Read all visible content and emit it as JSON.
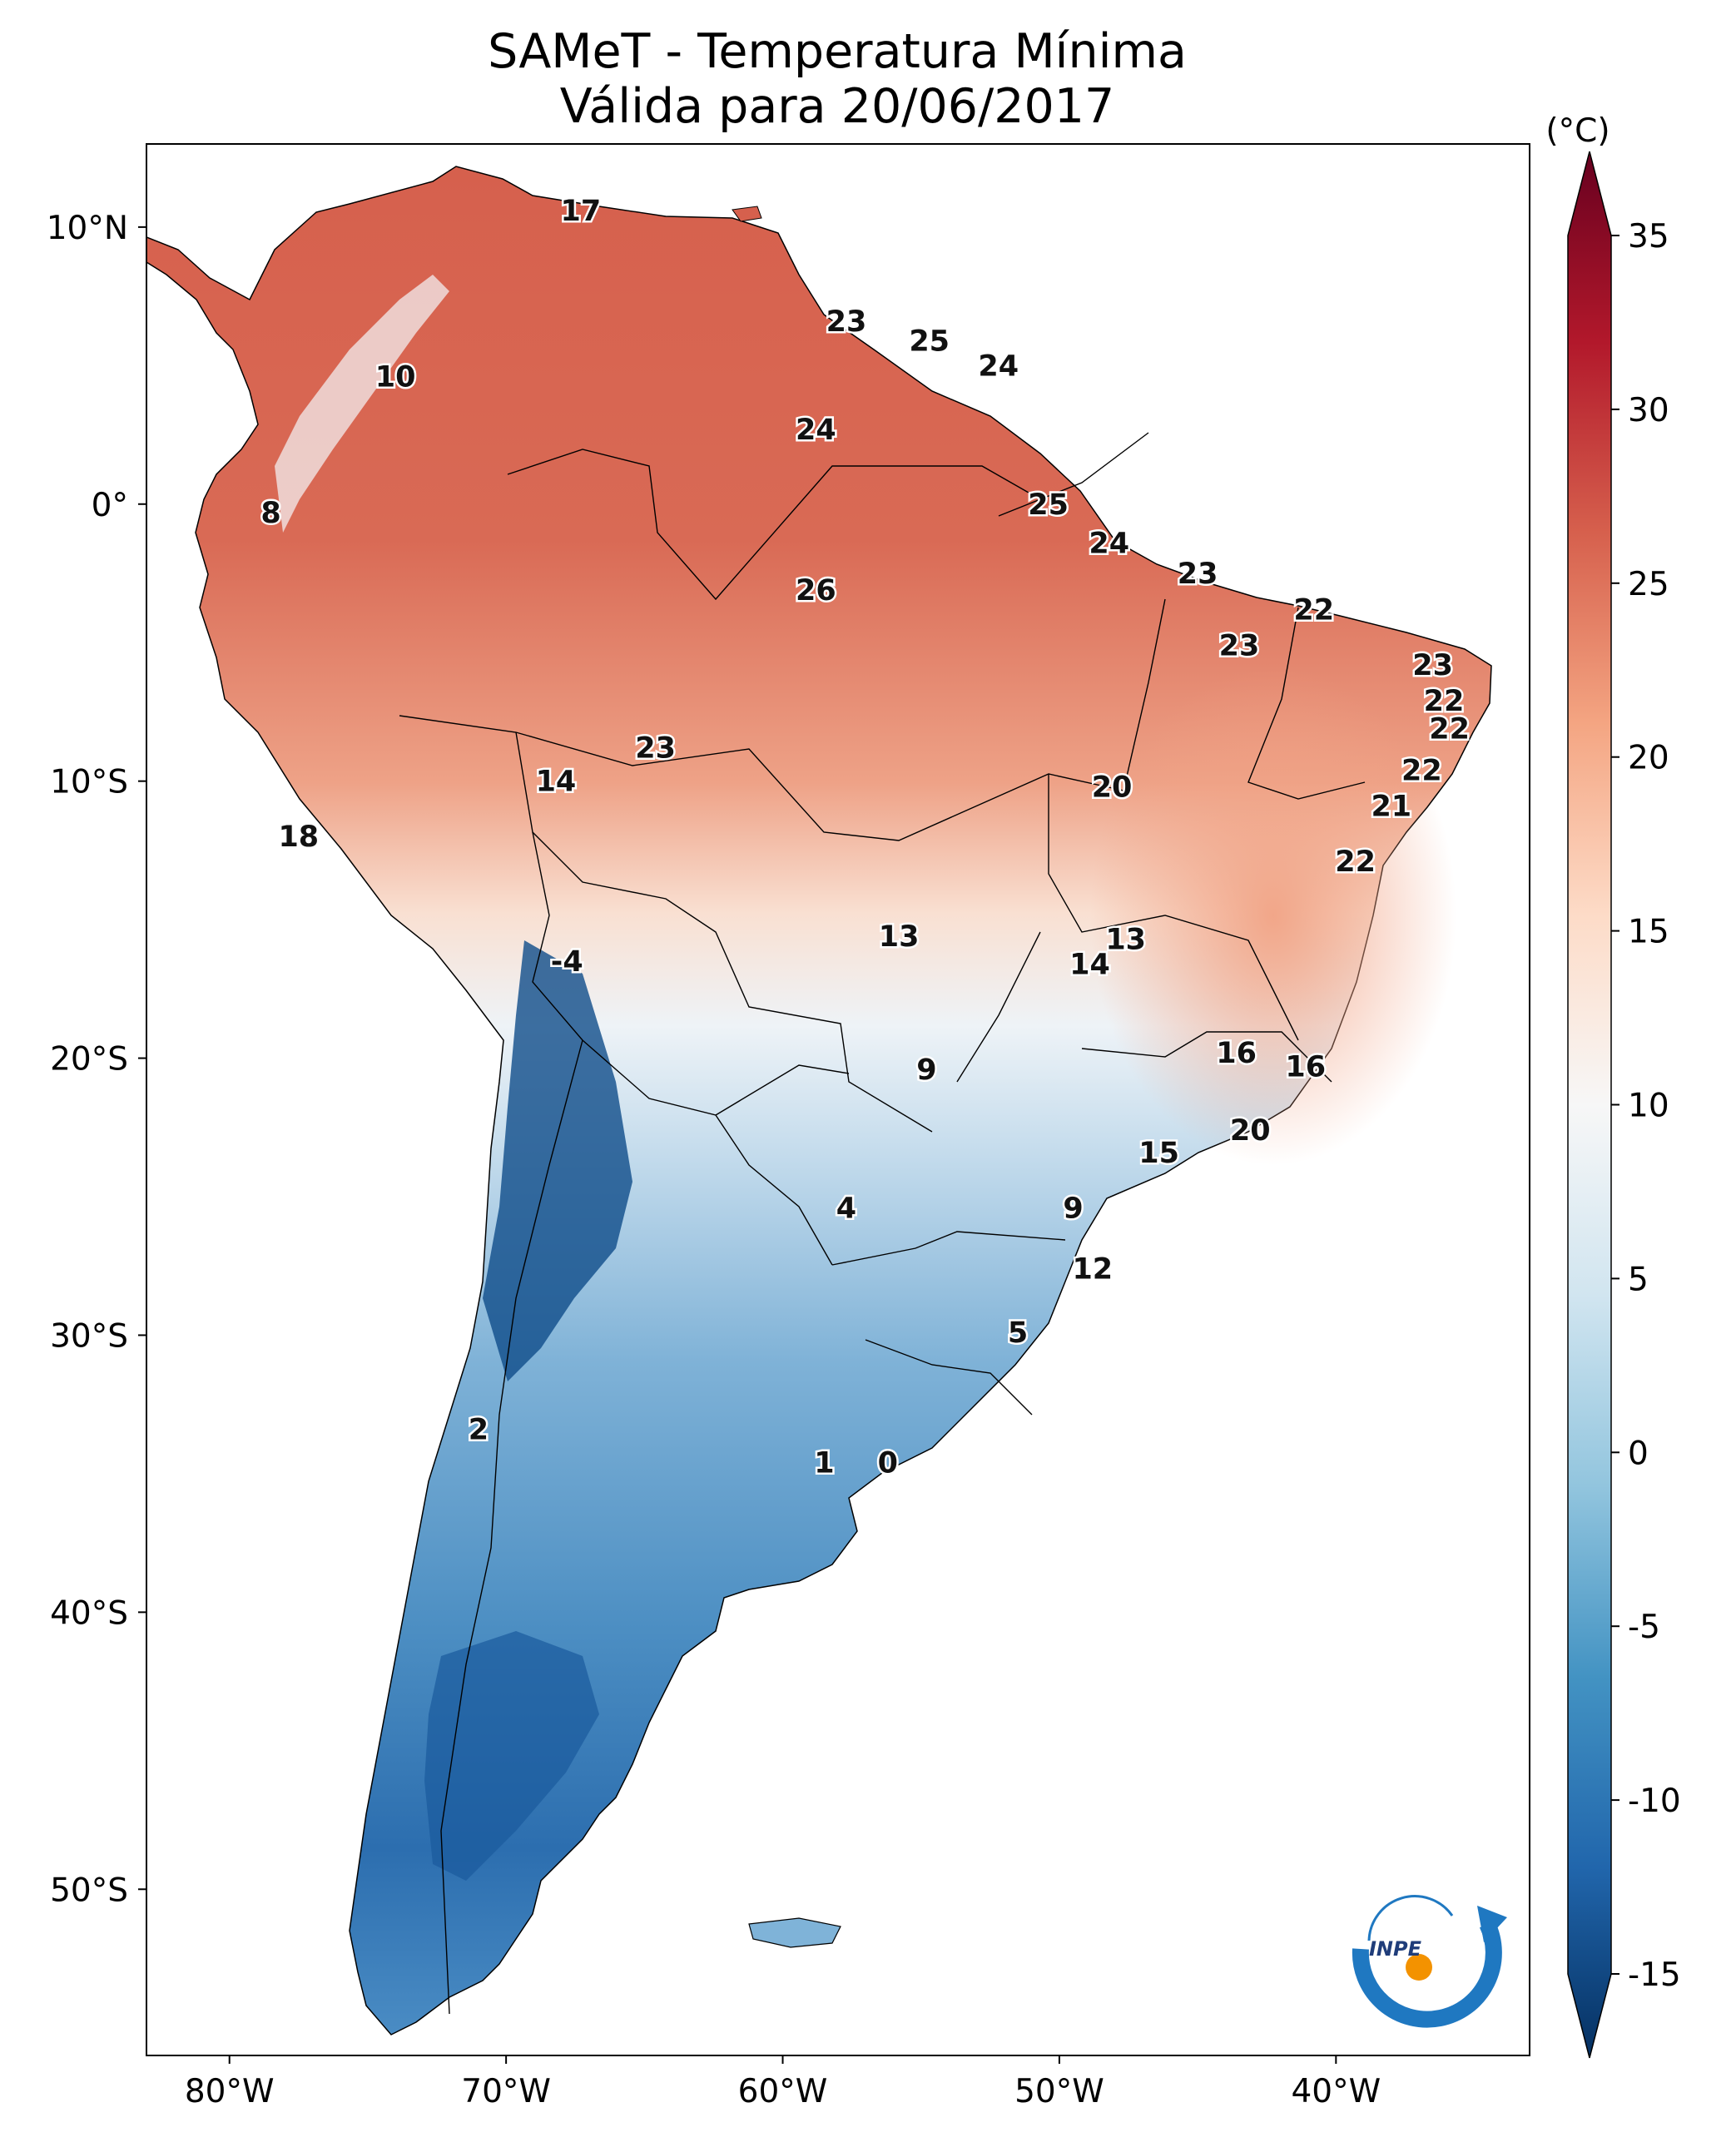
{
  "title": {
    "line1": "SAMeT - Temperatura Mínima",
    "line2": "Válida para 20/06/2017"
  },
  "axes": {
    "lat_labels": [
      "10°N",
      "0°",
      "10°S",
      "20°S",
      "30°S",
      "40°S",
      "50°S"
    ],
    "lat_values": [
      10,
      0,
      -10,
      -20,
      -30,
      -40,
      -50
    ],
    "lon_labels": [
      "80°W",
      "70°W",
      "60°W",
      "50°W",
      "40°W"
    ],
    "lon_values": [
      -80,
      -70,
      -60,
      -50,
      -40
    ],
    "lon_range": [
      -83,
      -33
    ],
    "lat_range": [
      -56,
      13
    ]
  },
  "colorbar": {
    "unit": "(°C)",
    "ticks": [
      "35",
      "30",
      "25",
      "20",
      "15",
      "10",
      "5",
      "0",
      "-5",
      "-10",
      "-15"
    ],
    "tick_values": [
      35,
      30,
      25,
      20,
      15,
      10,
      5,
      0,
      -5,
      -10,
      -15
    ],
    "range": [
      -15,
      35
    ],
    "colormap": "RdBu_r",
    "stops": [
      "#053061",
      "#2166ac",
      "#4393c3",
      "#92c5de",
      "#d1e5f0",
      "#f7f7f7",
      "#fddbc7",
      "#f4a582",
      "#d6604d",
      "#b2182b",
      "#67001f"
    ]
  },
  "logo": {
    "text": "INPE",
    "arc_color": "#1f78c1",
    "dot_color": "#f39200"
  },
  "chart_data": {
    "type": "heatmap",
    "title": "SAMeT - Temperatura Mínima Válida para 20/06/2017",
    "value_unit": "°C",
    "labels": [
      {
        "text": "17",
        "lon": -67.3,
        "lat": 10.6,
        "value": 17
      },
      {
        "text": "23",
        "lon": -57.7,
        "lat": 6.6,
        "value": 23
      },
      {
        "text": "25",
        "lon": -54.7,
        "lat": 5.9,
        "value": 25
      },
      {
        "text": "24",
        "lon": -52.2,
        "lat": 5.0,
        "value": 24
      },
      {
        "text": "10",
        "lon": -74.0,
        "lat": 4.6,
        "value": 10
      },
      {
        "text": "24",
        "lon": -58.8,
        "lat": 2.7,
        "value": 24
      },
      {
        "text": "8",
        "lon": -78.5,
        "lat": -0.3,
        "value": 8
      },
      {
        "text": "25",
        "lon": -50.4,
        "lat": 0.0,
        "value": 25
      },
      {
        "text": "24",
        "lon": -48.2,
        "lat": -1.4,
        "value": 24
      },
      {
        "text": "23",
        "lon": -45.0,
        "lat": -2.5,
        "value": 23
      },
      {
        "text": "26",
        "lon": -58.8,
        "lat": -3.1,
        "value": 26
      },
      {
        "text": "22",
        "lon": -40.8,
        "lat": -3.8,
        "value": 22
      },
      {
        "text": "23",
        "lon": -43.5,
        "lat": -5.1,
        "value": 23
      },
      {
        "text": "23",
        "lon": -36.5,
        "lat": -5.8,
        "value": 23
      },
      {
        "text": "22",
        "lon": -36.1,
        "lat": -7.1,
        "value": 22
      },
      {
        "text": "22",
        "lon": -35.9,
        "lat": -8.1,
        "value": 22
      },
      {
        "text": "23",
        "lon": -64.6,
        "lat": -8.8,
        "value": 23
      },
      {
        "text": "22",
        "lon": -36.9,
        "lat": -9.6,
        "value": 22
      },
      {
        "text": "14",
        "lon": -68.2,
        "lat": -10.0,
        "value": 14
      },
      {
        "text": "20",
        "lon": -48.1,
        "lat": -10.2,
        "value": 20
      },
      {
        "text": "21",
        "lon": -38.0,
        "lat": -10.9,
        "value": 21
      },
      {
        "text": "18",
        "lon": -77.5,
        "lat": -12.0,
        "value": 18
      },
      {
        "text": "22",
        "lon": -39.3,
        "lat": -12.9,
        "value": 22
      },
      {
        "text": "13",
        "lon": -55.8,
        "lat": -15.6,
        "value": 13
      },
      {
        "text": "13",
        "lon": -47.6,
        "lat": -15.7,
        "value": 13
      },
      {
        "text": "14",
        "lon": -48.9,
        "lat": -16.6,
        "value": 14
      },
      {
        "text": "-4",
        "lon": -67.8,
        "lat": -16.5,
        "value": -4
      },
      {
        "text": "16",
        "lon": -43.6,
        "lat": -19.8,
        "value": 16
      },
      {
        "text": "16",
        "lon": -41.1,
        "lat": -20.3,
        "value": 16
      },
      {
        "text": "9",
        "lon": -54.8,
        "lat": -20.4,
        "value": 9
      },
      {
        "text": "20",
        "lon": -43.1,
        "lat": -22.6,
        "value": 20
      },
      {
        "text": "15",
        "lon": -46.4,
        "lat": -23.4,
        "value": 15
      },
      {
        "text": "4",
        "lon": -57.7,
        "lat": -25.4,
        "value": 4
      },
      {
        "text": "9",
        "lon": -49.5,
        "lat": -25.4,
        "value": 9
      },
      {
        "text": "12",
        "lon": -48.8,
        "lat": -27.6,
        "value": 12
      },
      {
        "text": "5",
        "lon": -51.5,
        "lat": -29.9,
        "value": 5
      },
      {
        "text": "2",
        "lon": -71.0,
        "lat": -33.4,
        "value": 2
      },
      {
        "text": "1",
        "lon": -58.5,
        "lat": -34.6,
        "value": 1
      },
      {
        "text": "0",
        "lon": -56.2,
        "lat": -34.6,
        "value": 0
      }
    ]
  }
}
